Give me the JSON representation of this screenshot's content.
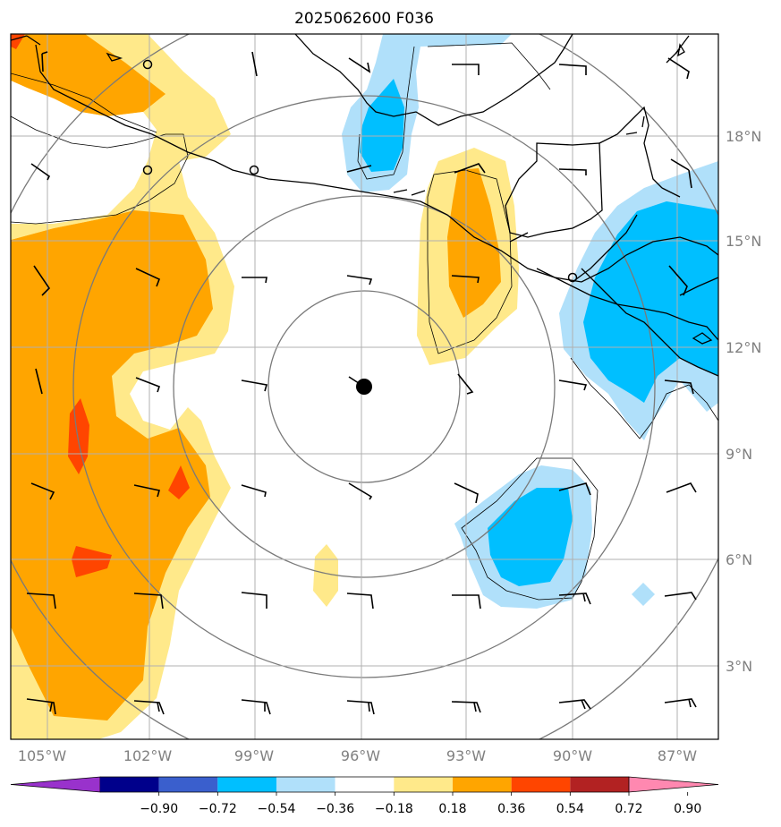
{
  "title": "2025062600 F036",
  "lon_labels": [
    "105°W",
    "102°W",
    "99°W",
    "96°W",
    "93°W",
    "90°W",
    "87°W"
  ],
  "lat_labels": [
    "18°N",
    "15°N",
    "12°N",
    "9°N",
    "6°N",
    "3°N"
  ],
  "colorbar": {
    "levels": [
      "−0.90",
      "−0.72",
      "−0.54",
      "−0.36",
      "−0.18",
      "0.18",
      "0.36",
      "0.54",
      "0.72",
      "0.90"
    ],
    "colors": [
      "#9932cc",
      "#00008b",
      "#3a5fcd",
      "#00bfff",
      "#b0e0fa",
      "#ffffff",
      "#ffe98a",
      "#ffa500",
      "#ff4500",
      "#b22222",
      "#ff88b0"
    ]
  },
  "shading_colors": {
    "neg_light": "#b0e0fa",
    "neg_mid": "#00bfff",
    "pos_light": "#ffe98a",
    "pos_mid": "#ffa500",
    "pos_strong": "#ff4500"
  },
  "storm_center": {
    "lon": -96.0,
    "lat": 10.9
  }
}
